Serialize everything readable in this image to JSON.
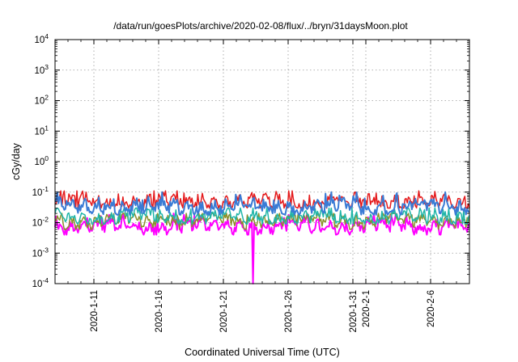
{
  "chart_data": {
    "type": "line",
    "title": "/data/run/goesPlots/archive/2020-02-08/flux/../bryn/31daysMoon.plot",
    "xlabel": "Coordinated Universal Time (UTC)",
    "ylabel": "cGy/day",
    "yscale": "log",
    "ylim": [
      0.0001,
      10000
    ],
    "xlim": [
      "2020-01-08",
      "2020-02-09"
    ],
    "y_ticks": [
      {
        "base": "10",
        "exp": "-4"
      },
      {
        "base": "10",
        "exp": "-3"
      },
      {
        "base": "10",
        "exp": "-2"
      },
      {
        "base": "10",
        "exp": "-1"
      },
      {
        "base": "10",
        "exp": "0"
      },
      {
        "base": "10",
        "exp": "1"
      },
      {
        "base": "10",
        "exp": "2"
      },
      {
        "base": "10",
        "exp": "3"
      },
      {
        "base": "10",
        "exp": "4"
      }
    ],
    "x_tick_labels": [
      "2020-1-11",
      "2020-1-16",
      "2020-1-21",
      "2020-1-26",
      "2020-1-31",
      "2020-2-1",
      "2020-2-6"
    ],
    "x_tick_dates": [
      "2020-01-11",
      "2020-01-16",
      "2020-01-21",
      "2020-01-26",
      "2020-01-31",
      "2020-02-01",
      "2020-02-06"
    ],
    "grid": true,
    "legend": "none",
    "series": [
      {
        "color": "#e41a1c",
        "typical": 0.045,
        "min": 0.03,
        "max": 0.11
      },
      {
        "color": "#3a7bd5",
        "typical": 0.032,
        "min": 0.018,
        "max": 0.1
      },
      {
        "color": "#1fb5a8",
        "typical": 0.015,
        "min": 0.009,
        "max": 0.03
      },
      {
        "color": "#8a8f2a",
        "typical": 0.012,
        "min": 0.006,
        "max": 0.02
      },
      {
        "color": "#ff00ff",
        "typical": 0.0075,
        "min": 0.004,
        "max": 0.02,
        "dropout": {
          "start": "2020-01-23",
          "end": "2020-01-23",
          "min": 0.0001
        }
      }
    ]
  }
}
